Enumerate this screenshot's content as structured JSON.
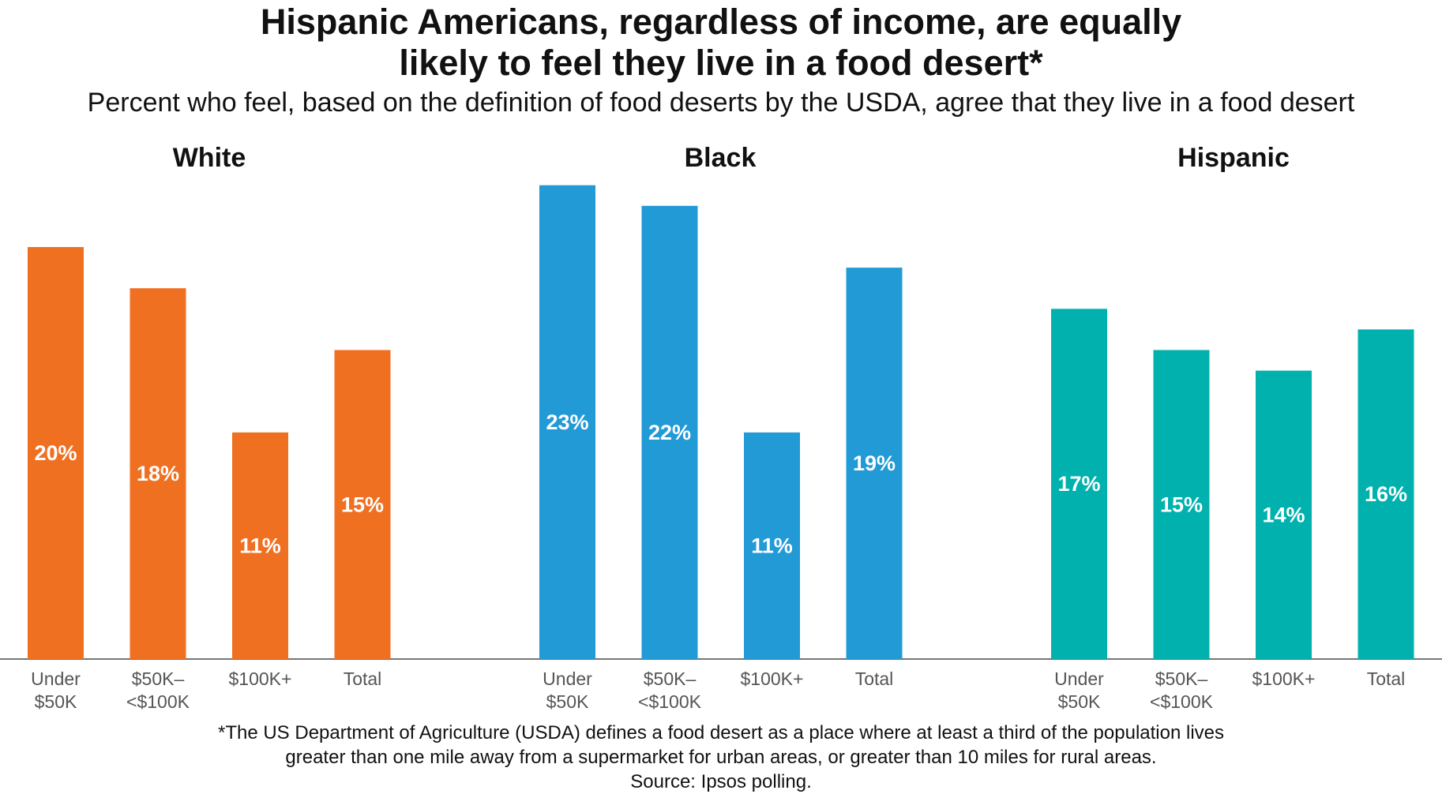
{
  "title": {
    "line1": "Hispanic Americans, regardless of income, are equally",
    "line2": "likely to feel they live in a food desert*"
  },
  "subtitle": "Percent who feel, based on the definition of food deserts by the USDA, agree that they live in a food desert",
  "chart_data": {
    "type": "bar",
    "ylim": [
      0,
      25
    ],
    "grid": false,
    "panels": [
      {
        "name": "White",
        "color": "#F07022",
        "categories": [
          [
            "Under",
            "$50K"
          ],
          [
            "$50K–",
            "<$100K"
          ],
          [
            "$100K+"
          ],
          [
            "Total"
          ]
        ],
        "values": [
          20,
          18,
          11,
          15
        ],
        "labels": [
          "20%",
          "18%",
          "11%",
          "15%"
        ]
      },
      {
        "name": "Black",
        "color": "#229AD6",
        "categories": [
          [
            "Under",
            "$50K"
          ],
          [
            "$50K–",
            "<$100K"
          ],
          [
            "$100K+"
          ],
          [
            "Total"
          ]
        ],
        "values": [
          23,
          22,
          11,
          19
        ],
        "labels": [
          "23%",
          "22%",
          "11%",
          "19%"
        ]
      },
      {
        "name": "Hispanic",
        "color": "#01B1AE",
        "categories": [
          [
            "Under",
            "$50K"
          ],
          [
            "$50K–",
            "<$100K"
          ],
          [
            "$100K+"
          ],
          [
            "Total"
          ]
        ],
        "values": [
          17,
          15,
          14,
          16
        ],
        "labels": [
          "17%",
          "15%",
          "14%",
          "16%"
        ]
      }
    ]
  },
  "footnote": {
    "line1": "*The US Department of Agriculture (USDA) defines a food desert as a place where at least a third of the population lives",
    "line2": "greater than one mile away from a supermarket for urban areas, or greater than 10 miles for rural areas.",
    "line3": "Source: Ipsos polling."
  }
}
